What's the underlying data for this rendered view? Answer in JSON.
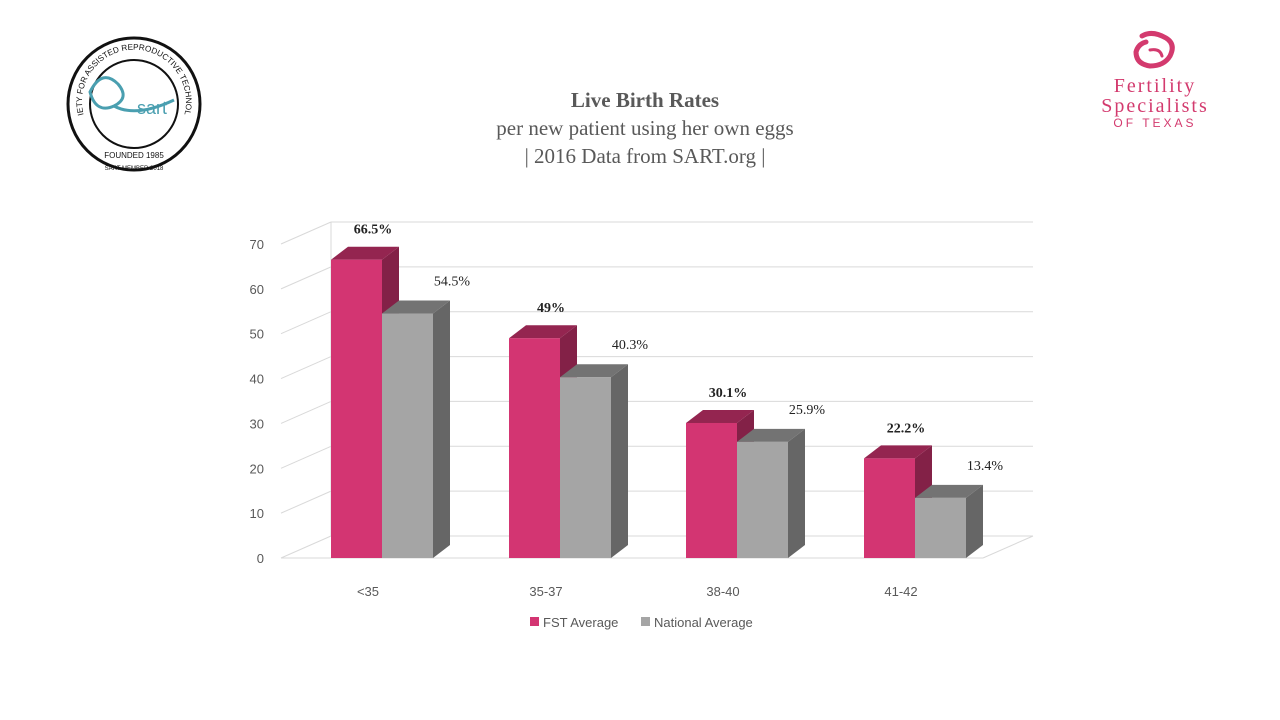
{
  "title": {
    "line1": "Live Birth Rates",
    "line2": "per new patient using her own eggs",
    "line3": "| 2016 Data from SART.org |"
  },
  "logos": {
    "sart": {
      "ring_text": "SOCIETY FOR ASSISTED REPRODUCTIVE TECHNOLOGY",
      "wordmark": "sart",
      "founded": "FOUNDED 1985",
      "member": "SART MEMBER 2018",
      "color": "#4a9fb0"
    },
    "fst": {
      "line1": "Fertility",
      "line2": "Specialists",
      "line3": "OF TEXAS",
      "color": "#d33a6e"
    }
  },
  "chart_data": {
    "type": "bar",
    "style": "3d-clustered",
    "categories": [
      "<35",
      "35-37",
      "38-40",
      "41-42"
    ],
    "series": [
      {
        "name": "FST Average",
        "values": [
          66.5,
          49,
          30.1,
          22.2
        ],
        "labels": [
          "66.5%",
          "49%",
          "30.1%",
          "22.2%"
        ],
        "color": "#d33572"
      },
      {
        "name": "National Average",
        "values": [
          54.5,
          40.3,
          25.9,
          13.4
        ],
        "labels": [
          "54.5%",
          "40.3%",
          "25.9%",
          "13.4%"
        ],
        "color": "#a5a5a5"
      }
    ],
    "ylim": [
      0,
      70
    ],
    "yticks": [
      0,
      10,
      20,
      30,
      40,
      50,
      60,
      70
    ],
    "grid": true,
    "legend": "bottom"
  }
}
